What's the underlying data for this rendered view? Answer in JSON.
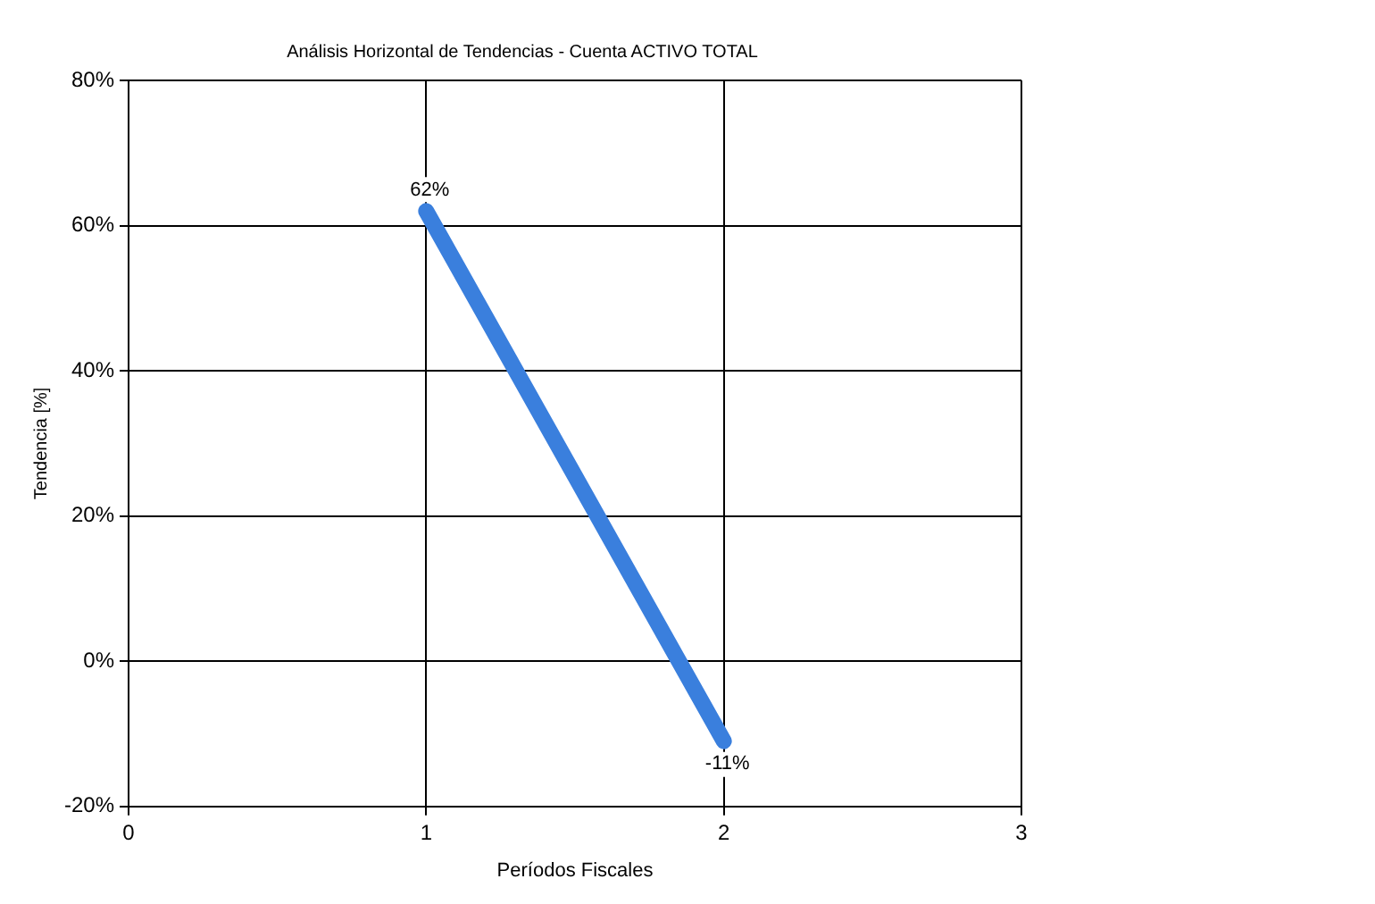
{
  "chart_data": {
    "type": "line",
    "title": "Análisis Horizontal de Tendencias - Cuenta ACTIVO TOTAL",
    "xlabel": "Períodos Fiscales",
    "ylabel": "Tendencia [%]",
    "series": [
      {
        "color": "#3a7fdd",
        "x": [
          1,
          2
        ],
        "values": [
          62,
          -11
        ],
        "value_labels": [
          "62%",
          "-11%"
        ]
      }
    ],
    "xlim": [
      0,
      3
    ],
    "xticks": [
      0,
      1,
      2,
      3
    ],
    "ylim": [
      -20,
      80
    ],
    "yticks": [
      {
        "value": -20,
        "label": "-20%"
      },
      {
        "value": 0,
        "label": "0%"
      },
      {
        "value": 20,
        "label": "20%"
      },
      {
        "value": 40,
        "label": "40%"
      },
      {
        "value": 60,
        "label": "60%"
      },
      {
        "value": 80,
        "label": "80%"
      }
    ],
    "grid": true,
    "legend": false,
    "marker": "none",
    "line_style": "solid"
  }
}
